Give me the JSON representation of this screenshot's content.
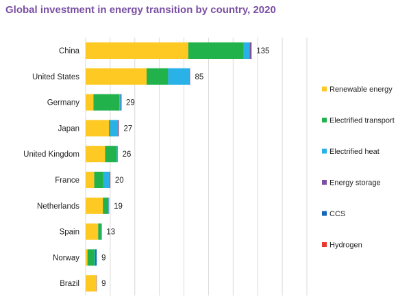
{
  "chart_data": {
    "type": "bar",
    "orientation": "horizontal",
    "stacked": true,
    "title": "Global investment in energy transition by country, 2020",
    "xlabel": "",
    "ylabel": "",
    "xlim": [
      0,
      180
    ],
    "grid": true,
    "legend_position": "right",
    "categories": [
      "China",
      "United States",
      "Germany",
      "Japan",
      "United Kingdom",
      "France",
      "Netherlands",
      "Spain",
      "Norway",
      "Brazil"
    ],
    "totals": [
      135,
      85,
      29,
      27,
      26,
      20,
      19,
      13,
      9,
      9
    ],
    "series": [
      {
        "name": "Renewable energy",
        "color": "#ffc924",
        "values": [
          83.5,
          49.6,
          6.4,
          19,
          15.8,
          7,
          14,
          10.2,
          1.5,
          8.8
        ]
      },
      {
        "name": "Electrified transport",
        "color": "#22b24c",
        "values": [
          45,
          17.5,
          21,
          1,
          9.5,
          7.4,
          4.5,
          2.3,
          5.8,
          0
        ]
      },
      {
        "name": "Electrified heat",
        "color": "#29b1e8",
        "values": [
          5,
          17.4,
          1.3,
          6.5,
          0.5,
          5,
          0.3,
          0.3,
          0.5,
          0
        ]
      },
      {
        "name": "Energy storage",
        "color": "#7d4fa1",
        "values": [
          0.8,
          0.5,
          0.2,
          0.3,
          0.2,
          0.2,
          0.2,
          0.2,
          0.2,
          0.2
        ]
      },
      {
        "name": "CCS",
        "color": "#1466b8",
        "values": [
          0.2,
          0,
          0,
          0,
          0,
          0.2,
          0,
          0,
          1,
          0
        ]
      },
      {
        "name": "Hydrogen",
        "color": "#e8382f",
        "values": [
          0.5,
          0,
          0.1,
          0.2,
          0,
          0.2,
          0,
          0,
          0,
          0
        ]
      }
    ]
  }
}
